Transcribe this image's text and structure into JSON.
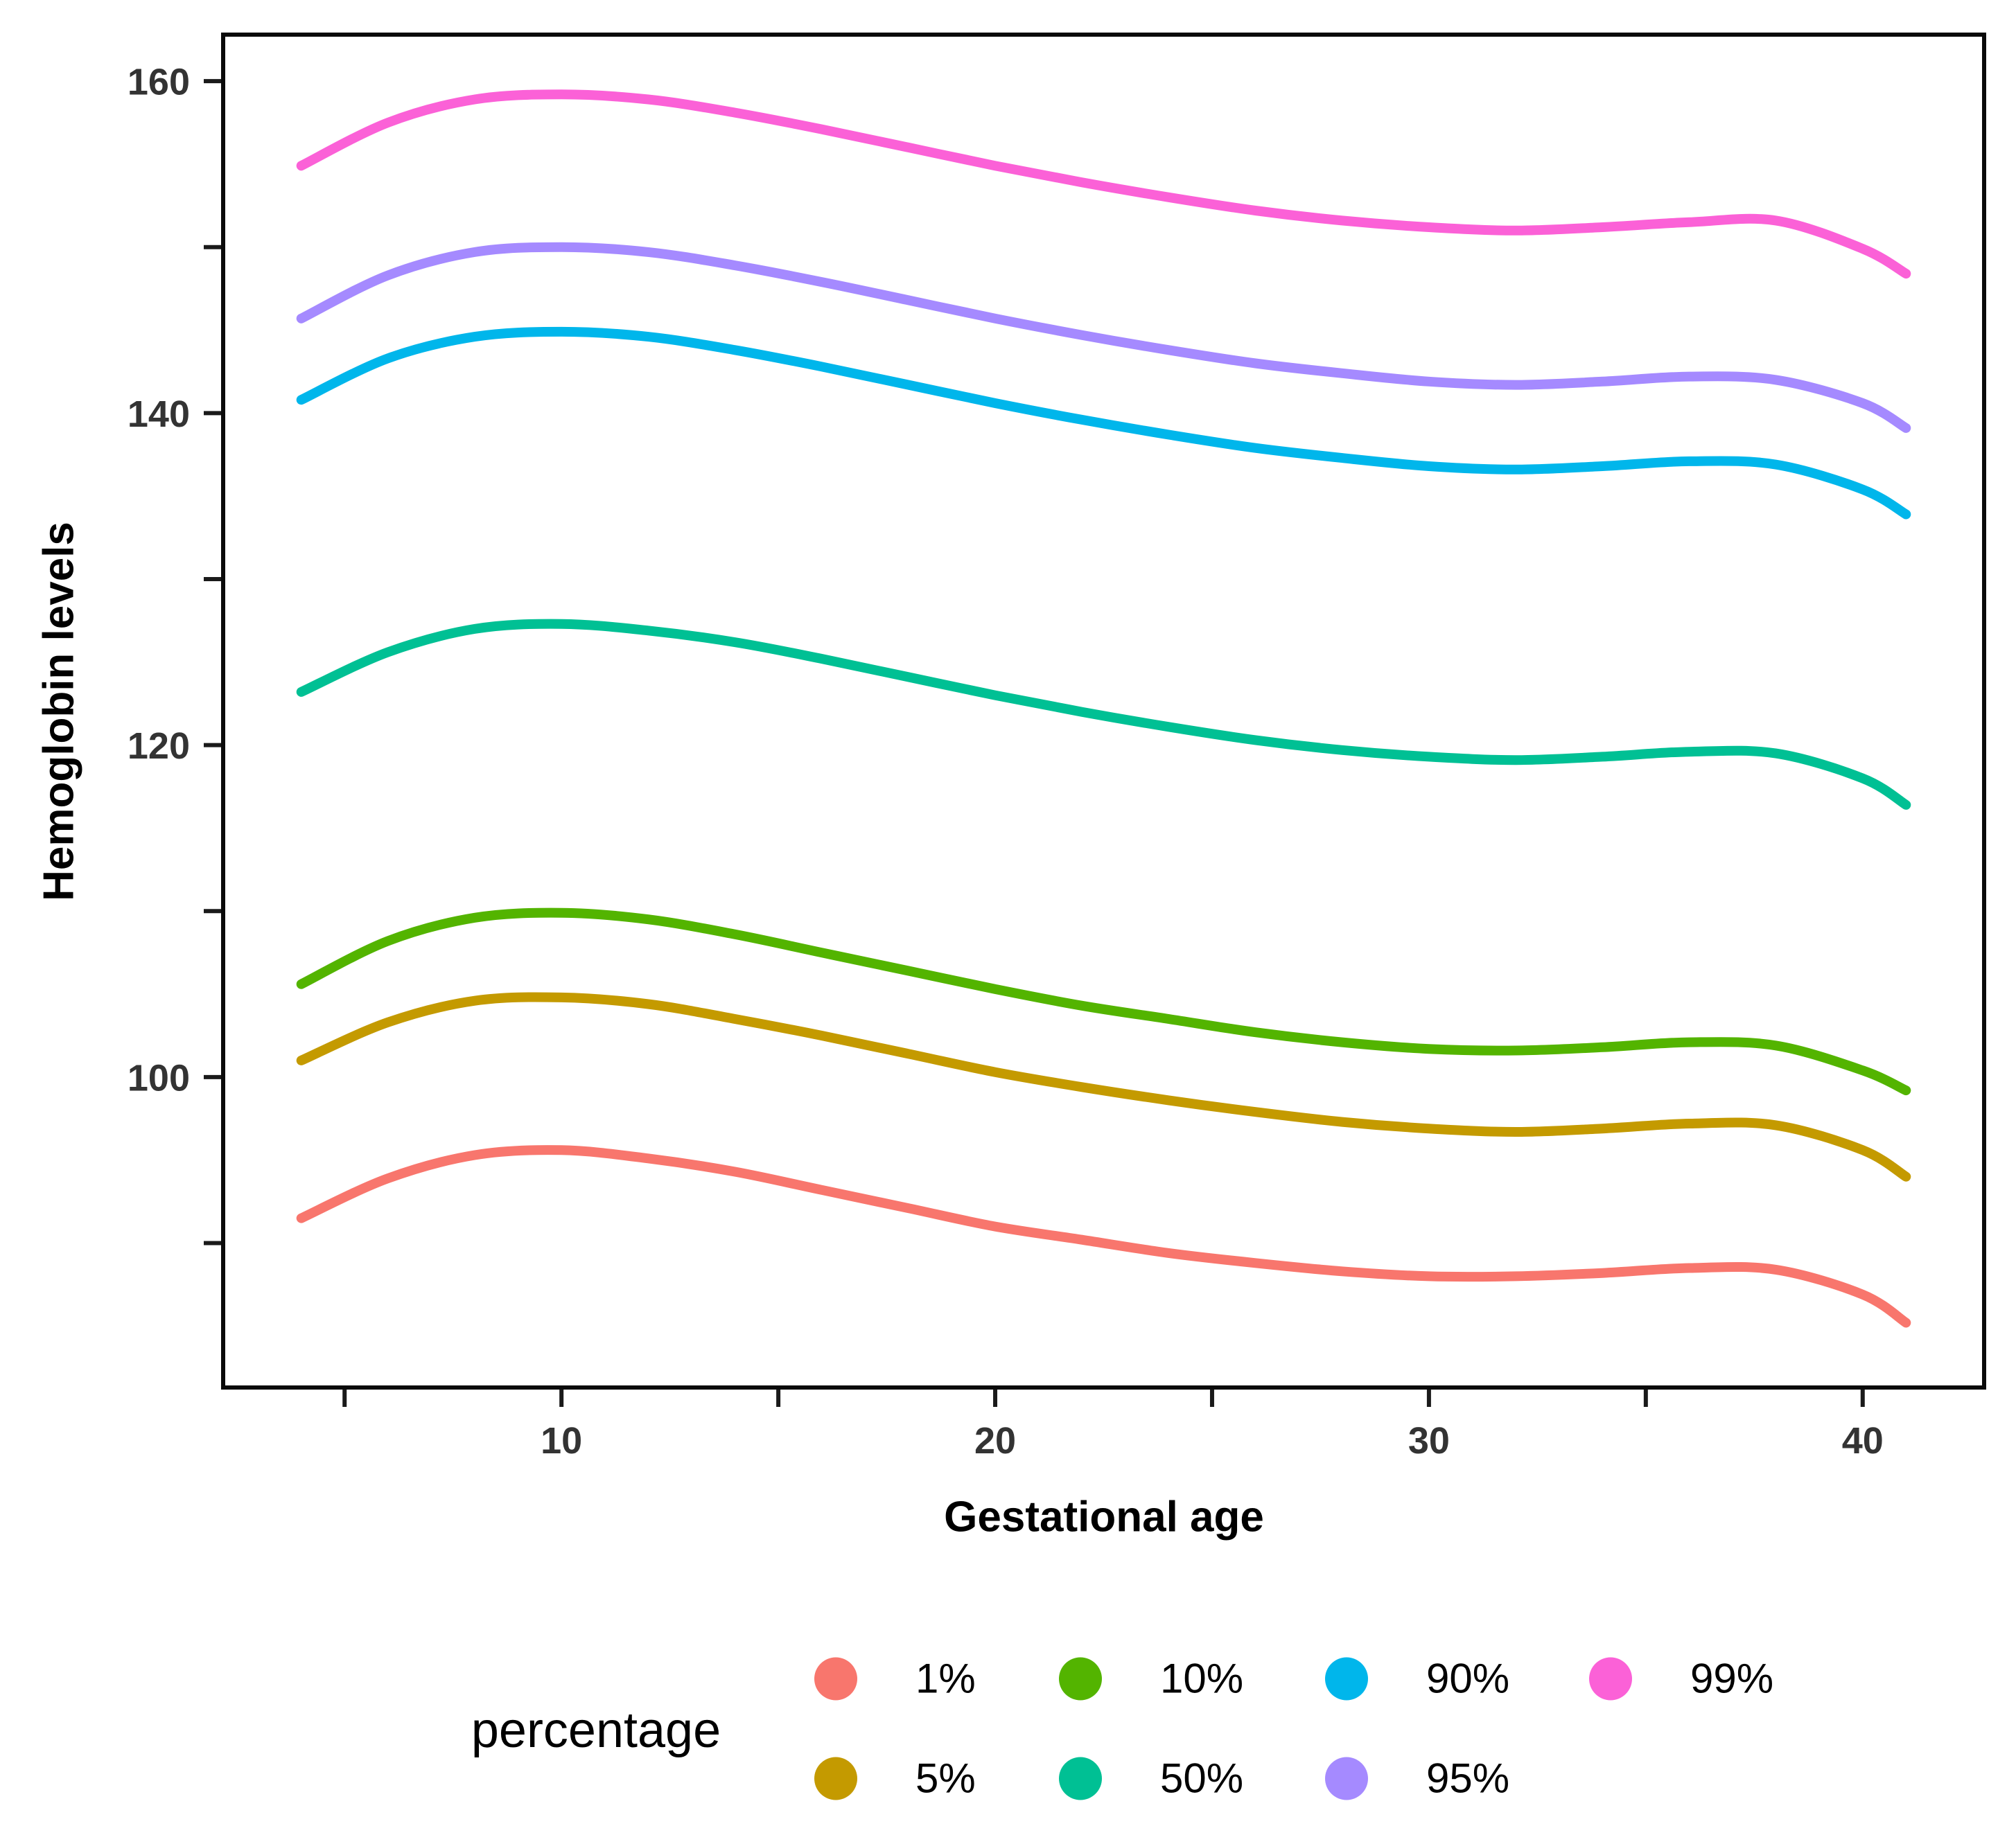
{
  "chart_data": {
    "type": "line",
    "title": "",
    "xlabel": "Gestational age",
    "ylabel": "Hemoglobin levels",
    "legend_title": "percentage",
    "legend_position": "bottom",
    "grid": false,
    "xlim": [
      2.2,
      42.8
    ],
    "ylim": [
      81.3,
      162.8
    ],
    "x_ticks_major": [
      {
        "v": 10,
        "label": "10"
      },
      {
        "v": 20,
        "label": "20"
      },
      {
        "v": 30,
        "label": "30"
      },
      {
        "v": 40,
        "label": "40"
      }
    ],
    "x_ticks_minor": [
      5,
      15,
      25,
      35
    ],
    "y_ticks_major": [
      {
        "v": 100,
        "label": "100"
      },
      {
        "v": 120,
        "label": "120"
      },
      {
        "v": 140,
        "label": "140"
      },
      {
        "v": 160,
        "label": "160"
      }
    ],
    "y_ticks_minor": [
      90,
      110,
      130,
      150
    ],
    "x": [
      4,
      6,
      8,
      10,
      12,
      14,
      16,
      18,
      20,
      22,
      24,
      26,
      28,
      30,
      32,
      34,
      36,
      38,
      40,
      41
    ],
    "series": [
      {
        "name": "1%",
        "color": "#F8766D",
        "values": [
          91.5,
          93.9,
          95.3,
          95.6,
          95.1,
          94.3,
          93.2,
          92.1,
          91.0,
          90.2,
          89.4,
          88.8,
          88.3,
          88.0,
          88.0,
          88.2,
          88.5,
          88.4,
          86.9,
          85.2
        ]
      },
      {
        "name": "5%",
        "color": "#C49A00",
        "values": [
          101.0,
          103.3,
          104.6,
          104.8,
          104.4,
          103.5,
          102.5,
          101.4,
          100.3,
          99.4,
          98.6,
          97.9,
          97.3,
          96.9,
          96.7,
          96.9,
          97.2,
          97.1,
          95.6,
          94.0
        ]
      },
      {
        "name": "10%",
        "color": "#53B400",
        "values": [
          105.6,
          108.2,
          109.6,
          109.9,
          109.5,
          108.6,
          107.5,
          106.4,
          105.3,
          104.3,
          103.5,
          102.7,
          102.1,
          101.7,
          101.6,
          101.8,
          102.1,
          101.9,
          100.4,
          99.2
        ]
      },
      {
        "name": "50%",
        "color": "#00C094",
        "values": [
          123.2,
          125.6,
          127.0,
          127.3,
          126.9,
          126.2,
          125.2,
          124.1,
          123.0,
          122.0,
          121.1,
          120.3,
          119.7,
          119.3,
          119.1,
          119.3,
          119.6,
          119.5,
          118.0,
          116.4
        ]
      },
      {
        "name": "90%",
        "color": "#00B6EB",
        "values": [
          140.8,
          143.3,
          144.6,
          144.9,
          144.6,
          143.8,
          142.8,
          141.7,
          140.6,
          139.6,
          138.7,
          137.9,
          137.3,
          136.8,
          136.6,
          136.8,
          137.1,
          136.9,
          135.4,
          133.9
        ]
      },
      {
        "name": "95%",
        "color": "#A58AFF",
        "values": [
          145.7,
          148.3,
          149.7,
          150.0,
          149.7,
          148.9,
          147.9,
          146.8,
          145.7,
          144.7,
          143.8,
          143.0,
          142.4,
          141.9,
          141.7,
          141.9,
          142.2,
          142.0,
          140.6,
          139.1
        ]
      },
      {
        "name": "99%",
        "color": "#FB61D7",
        "values": [
          154.9,
          157.5,
          158.9,
          159.2,
          158.9,
          158.1,
          157.1,
          156.0,
          154.9,
          153.9,
          153.0,
          152.2,
          151.6,
          151.2,
          151.0,
          151.2,
          151.5,
          151.6,
          149.9,
          148.4
        ]
      }
    ],
    "style": {
      "panel_border_color": "#0a0a0a",
      "tick_color": "#1a1a1a",
      "tick_label_color": "#333333",
      "line_width": 14
    }
  },
  "legend": {
    "title": "percentage",
    "items": [
      {
        "label": "1%",
        "color": "#F8766D"
      },
      {
        "label": "5%",
        "color": "#C49A00"
      },
      {
        "label": "10%",
        "color": "#53B400"
      },
      {
        "label": "50%",
        "color": "#00C094"
      },
      {
        "label": "90%",
        "color": "#00B6EB"
      },
      {
        "label": "95%",
        "color": "#A58AFF"
      },
      {
        "label": "99%",
        "color": "#FB61D7"
      }
    ]
  }
}
